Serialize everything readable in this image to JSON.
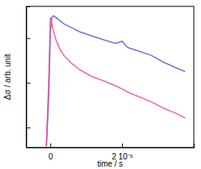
{
  "chart_data": {
    "type": "line",
    "x_label": "time / s",
    "y_label": "Δσ / arb. unit",
    "x": [
      -1.1e-06,
      -4.4e-07,
      0,
      4.4e-07,
      8.9e-07,
      1.56e-06,
      2.67e-06,
      3.78e-06,
      6e-06,
      8.22e-06,
      1.156e-05,
      1.489e-05,
      1.822e-05,
      2e-05,
      2.156e-05,
      2.489e-05,
      2.822e-05,
      3.156e-05,
      3.489e-05,
      3.756e-05
    ],
    "series": [
      {
        "color": "#5b5bd6",
        "values": [
          -0.41,
          0.71,
          2.14,
          2.46,
          2.5,
          2.46,
          2.39,
          2.32,
          2.23,
          2.14,
          2.05,
          1.96,
          1.88,
          1.93,
          1.79,
          1.7,
          1.61,
          1.46,
          1.34,
          1.25
        ]
      },
      {
        "color": "#e0559b",
        "values": [
          -0.43,
          1.07,
          2.46,
          2.32,
          2.14,
          1.96,
          1.75,
          1.61,
          1.43,
          1.29,
          1.14,
          1.04,
          0.93,
          0.86,
          0.79,
          0.68,
          0.57,
          0.43,
          0.32,
          0.21
        ]
      }
    ],
    "xlim": [
      -6.7e-06,
      4e-05
    ],
    "ylim": [
      -0.45,
      2.71
    ],
    "xticks": [
      0,
      {
        "value": 2e-05,
        "label": "2 10⁻⁵"
      }
    ],
    "yticks": [
      0,
      1,
      2
    ],
    "tick_labels": "x",
    "grid": false
  }
}
